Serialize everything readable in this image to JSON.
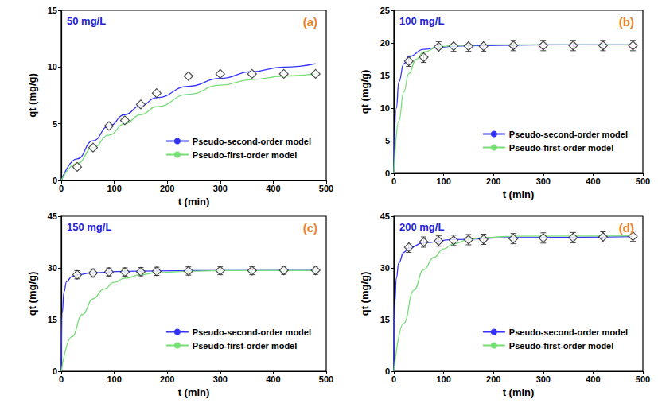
{
  "chart_data": [
    {
      "type": "line",
      "title": "50 mg/L",
      "annotations": [
        "(a)"
      ],
      "x_label": "t (min)",
      "y_label": "qt (mg/g)",
      "xlim": [
        0,
        500
      ],
      "xticks": [
        0,
        100,
        200,
        300,
        400,
        500
      ],
      "ylim": [
        0,
        15
      ],
      "yticks": [
        0,
        5,
        10,
        15
      ],
      "grid": false,
      "legend": "lower right",
      "series": [
        {
          "type": "scatter",
          "marker": "diamond",
          "x": [
            30,
            60,
            90,
            120,
            150,
            180,
            240,
            300,
            360,
            420,
            480
          ],
          "values": [
            1.2,
            2.9,
            4.8,
            5.3,
            6.7,
            7.7,
            9.2,
            9.4,
            9.4,
            9.4,
            9.4
          ]
        },
        {
          "type": "line",
          "name": "Pseudo-second-order model",
          "color": "#3333ff",
          "line_style": "solid",
          "x": [
            0,
            30,
            60,
            90,
            120,
            150,
            180,
            240,
            300,
            360,
            420,
            480
          ],
          "values": [
            0,
            1.9,
            3.5,
            4.8,
            5.8,
            6.6,
            7.3,
            8.3,
            9.0,
            9.6,
            10.0,
            10.3
          ]
        },
        {
          "type": "line",
          "name": "Pseudo-first-order model",
          "color": "#77dd77",
          "line_style": "solid",
          "x": [
            0,
            30,
            60,
            90,
            120,
            150,
            180,
            240,
            300,
            360,
            420,
            480
          ],
          "values": [
            0,
            1.5,
            2.9,
            4.0,
            5.0,
            5.8,
            6.5,
            7.6,
            8.4,
            8.9,
            9.2,
            9.4
          ]
        }
      ]
    },
    {
      "type": "line",
      "title": "100 mg/L",
      "annotations": [
        "(b)"
      ],
      "x_label": "t (min)",
      "y_label": "qt (mg/g)",
      "xlim": [
        0,
        500
      ],
      "xticks": [
        0,
        100,
        200,
        300,
        400,
        500
      ],
      "ylim": [
        0,
        25
      ],
      "yticks": [
        0,
        5,
        10,
        15,
        20,
        25
      ],
      "grid": false,
      "legend": "lower right",
      "series": [
        {
          "type": "scatter",
          "marker": "diamond",
          "x": [
            30,
            60,
            90,
            120,
            150,
            180,
            240,
            300,
            360,
            420,
            480
          ],
          "values": [
            17.2,
            17.8,
            19.4,
            19.5,
            19.5,
            19.5,
            19.6,
            19.6,
            19.6,
            19.6,
            19.6
          ],
          "errors": [
            0.8,
            0.8,
            0.8,
            0.8,
            0.8,
            0.8,
            0.8,
            0.8,
            0.8,
            0.8,
            0.8
          ]
        },
        {
          "type": "line",
          "name": "Pseudo-second-order model",
          "color": "#3333ff",
          "line_style": "solid",
          "x": [
            0,
            5,
            10,
            20,
            30,
            60,
            90,
            120,
            180,
            300,
            480
          ],
          "values": [
            0,
            10,
            14,
            16.8,
            17.9,
            19.0,
            19.3,
            19.5,
            19.6,
            19.7,
            19.7
          ]
        },
        {
          "type": "line",
          "name": "Pseudo-first-order model",
          "color": "#77dd77",
          "line_style": "solid",
          "x": [
            0,
            10,
            20,
            30,
            45,
            60,
            90,
            120,
            180,
            480
          ],
          "values": [
            0,
            8,
            12.5,
            15.3,
            17.5,
            18.6,
            19.4,
            19.6,
            19.7,
            19.7
          ]
        }
      ]
    },
    {
      "type": "line",
      "title": "150 mg/L",
      "annotations": [
        "(c)"
      ],
      "x_label": "t (min)",
      "y_label": "qt (mg/g)",
      "xlim": [
        0,
        500
      ],
      "xticks": [
        0,
        100,
        200,
        300,
        400,
        500
      ],
      "ylim": [
        0,
        45
      ],
      "yticks": [
        0,
        15,
        30,
        45
      ],
      "grid": false,
      "legend": "lower right",
      "series": [
        {
          "type": "scatter",
          "marker": "diamond",
          "x": [
            30,
            60,
            90,
            120,
            150,
            180,
            240,
            300,
            360,
            420,
            480
          ],
          "values": [
            28,
            28.5,
            28.8,
            28.8,
            28.9,
            29,
            29.1,
            29.2,
            29.2,
            29.3,
            29.3
          ],
          "errors": [
            1.2,
            1.2,
            1.2,
            1.2,
            1.2,
            1.2,
            1.2,
            1.2,
            1.2,
            1.2,
            1.2
          ]
        },
        {
          "type": "line",
          "name": "Pseudo-second-order model",
          "color": "#3333ff",
          "line_style": "solid",
          "x": [
            0,
            2,
            5,
            10,
            20,
            30,
            60,
            120,
            240,
            480
          ],
          "values": [
            0,
            17,
            23,
            26,
            27.5,
            28,
            28.6,
            29,
            29.2,
            29.3
          ]
        },
        {
          "type": "line",
          "name": "Pseudo-first-order model",
          "color": "#77dd77",
          "line_style": "solid",
          "x": [
            0,
            20,
            40,
            60,
            80,
            100,
            120,
            150,
            180,
            240,
            300,
            480
          ],
          "values": [
            0,
            10,
            16.5,
            21,
            23.8,
            25.8,
            27,
            28,
            28.6,
            29,
            29.2,
            29.2
          ]
        }
      ]
    },
    {
      "type": "line",
      "title": "200 mg/L",
      "annotations": [
        "(d)"
      ],
      "x_label": "t (min)",
      "y_label": "qt (mg/g)",
      "xlim": [
        0,
        500
      ],
      "xticks": [
        0,
        100,
        200,
        300,
        400,
        500
      ],
      "ylim": [
        0,
        45
      ],
      "yticks": [
        0,
        15,
        30,
        45
      ],
      "grid": false,
      "legend": "lower right",
      "series": [
        {
          "type": "scatter",
          "marker": "diamond",
          "x": [
            30,
            60,
            90,
            120,
            150,
            180,
            240,
            300,
            360,
            420,
            480
          ],
          "values": [
            36,
            37.5,
            37.8,
            38,
            38.2,
            38.3,
            38.5,
            38.7,
            38.8,
            39,
            39.2
          ],
          "errors": [
            1.5,
            1.5,
            1.5,
            1.5,
            1.5,
            1.5,
            1.5,
            1.5,
            1.5,
            1.5,
            1.5
          ]
        },
        {
          "type": "line",
          "name": "Pseudo-second-order model",
          "color": "#3333ff",
          "line_style": "solid",
          "x": [
            0,
            2,
            5,
            10,
            20,
            30,
            60,
            120,
            240,
            480
          ],
          "values": [
            0,
            20,
            27,
            31.5,
            34.5,
            35.8,
            37.3,
            38.2,
            38.8,
            39.1
          ]
        },
        {
          "type": "line",
          "name": "Pseudo-first-order model",
          "color": "#77dd77",
          "line_style": "solid",
          "x": [
            0,
            20,
            40,
            60,
            80,
            100,
            120,
            150,
            180,
            240,
            480
          ],
          "values": [
            0,
            14,
            23.5,
            29.5,
            33,
            35.5,
            37,
            38.2,
            38.8,
            39.2,
            39.3
          ]
        }
      ]
    }
  ]
}
